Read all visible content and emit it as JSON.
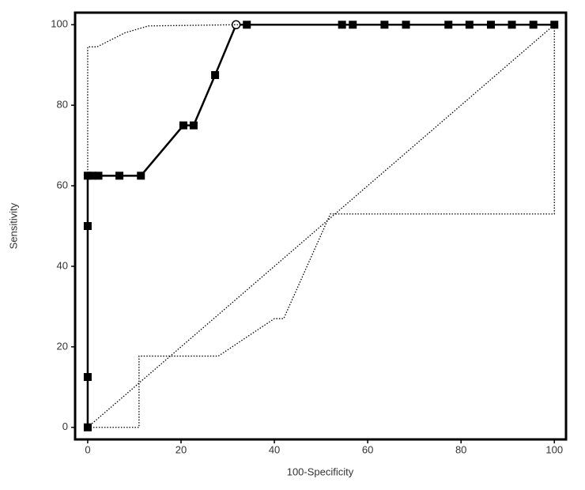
{
  "chart_data": {
    "type": "line",
    "x_label": "100-Specificity",
    "y_label": "Sensitivity",
    "xlim": [
      -2.7,
      102.5
    ],
    "ylim": [
      -3,
      103
    ],
    "xticks": [
      0,
      20,
      40,
      60,
      80,
      100
    ],
    "yticks": [
      0,
      20,
      40,
      60,
      80,
      100
    ],
    "series": [
      {
        "color": "#000000",
        "style": "solid",
        "markers": true,
        "highlight_index": 11,
        "x": [
          0,
          0,
          0,
          0,
          1,
          2.3,
          6.8,
          11.4,
          20.5,
          22.7,
          27.3,
          31.8,
          34.1,
          54.5,
          56.8,
          63.6,
          68.2,
          77.3,
          81.8,
          86.4,
          90.9,
          95.5,
          100
        ],
        "values": [
          0,
          12.5,
          50,
          62.5,
          62.5,
          62.5,
          62.5,
          62.5,
          75,
          75,
          87.5,
          100,
          100,
          100,
          100,
          100,
          100,
          100,
          100,
          100,
          100,
          100,
          100
        ]
      },
      {
        "color": "#000000",
        "style": "dotted",
        "markers": false,
        "x": [
          0,
          0,
          2,
          8,
          13,
          32,
          100
        ],
        "values": [
          0,
          94.5,
          94.5,
          98,
          99.7,
          100,
          100
        ]
      },
      {
        "color": "#000000",
        "style": "dotted",
        "markers": false,
        "x": [
          0,
          11,
          11,
          28,
          40,
          42,
          47,
          52,
          100,
          100
        ],
        "values": [
          0,
          0,
          17.7,
          17.7,
          27,
          27,
          40,
          53,
          53,
          100
        ]
      },
      {
        "color": "#000000",
        "style": "dotted",
        "markers": false,
        "x": [
          0,
          100
        ],
        "values": [
          0,
          100
        ]
      }
    ]
  }
}
